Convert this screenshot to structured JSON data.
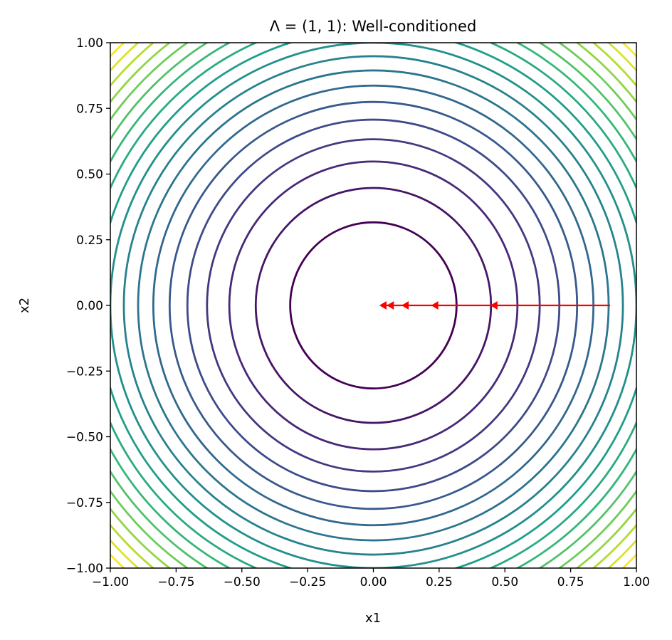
{
  "chart_data": {
    "type": "contour",
    "title": "Λ = (1, 1): Well-conditioned",
    "xlabel": "x1",
    "ylabel": "x2",
    "xlim": [
      -1,
      1
    ],
    "ylim": [
      -1,
      1
    ],
    "function": "x1^2 + x2^2",
    "levels": [
      0.1,
      0.2,
      0.3,
      0.4,
      0.5,
      0.6,
      0.7,
      0.8,
      0.9,
      1.0,
      1.1,
      1.2,
      1.3,
      1.4,
      1.5,
      1.6,
      1.7,
      1.8,
      1.9
    ],
    "colormap": "viridis",
    "xticks": [
      "−1.00",
      "−0.75",
      "−0.50",
      "−0.25",
      "0.00",
      "0.25",
      "0.50",
      "0.75",
      "1.00"
    ],
    "yticks": [
      "1.00",
      "0.75",
      "0.50",
      "0.25",
      "0.00",
      "−0.25",
      "−0.50",
      "−0.75",
      "−1.00"
    ],
    "tick_values": [
      -1,
      -0.75,
      -0.5,
      -0.25,
      0,
      0.25,
      0.5,
      0.75,
      1
    ],
    "path": {
      "color": "#ff0000",
      "x1": [
        0.9,
        0.45,
        0.225,
        0.1125,
        0.05625,
        0.028125
      ],
      "x2": [
        0,
        0,
        0,
        0,
        0,
        0
      ]
    }
  }
}
